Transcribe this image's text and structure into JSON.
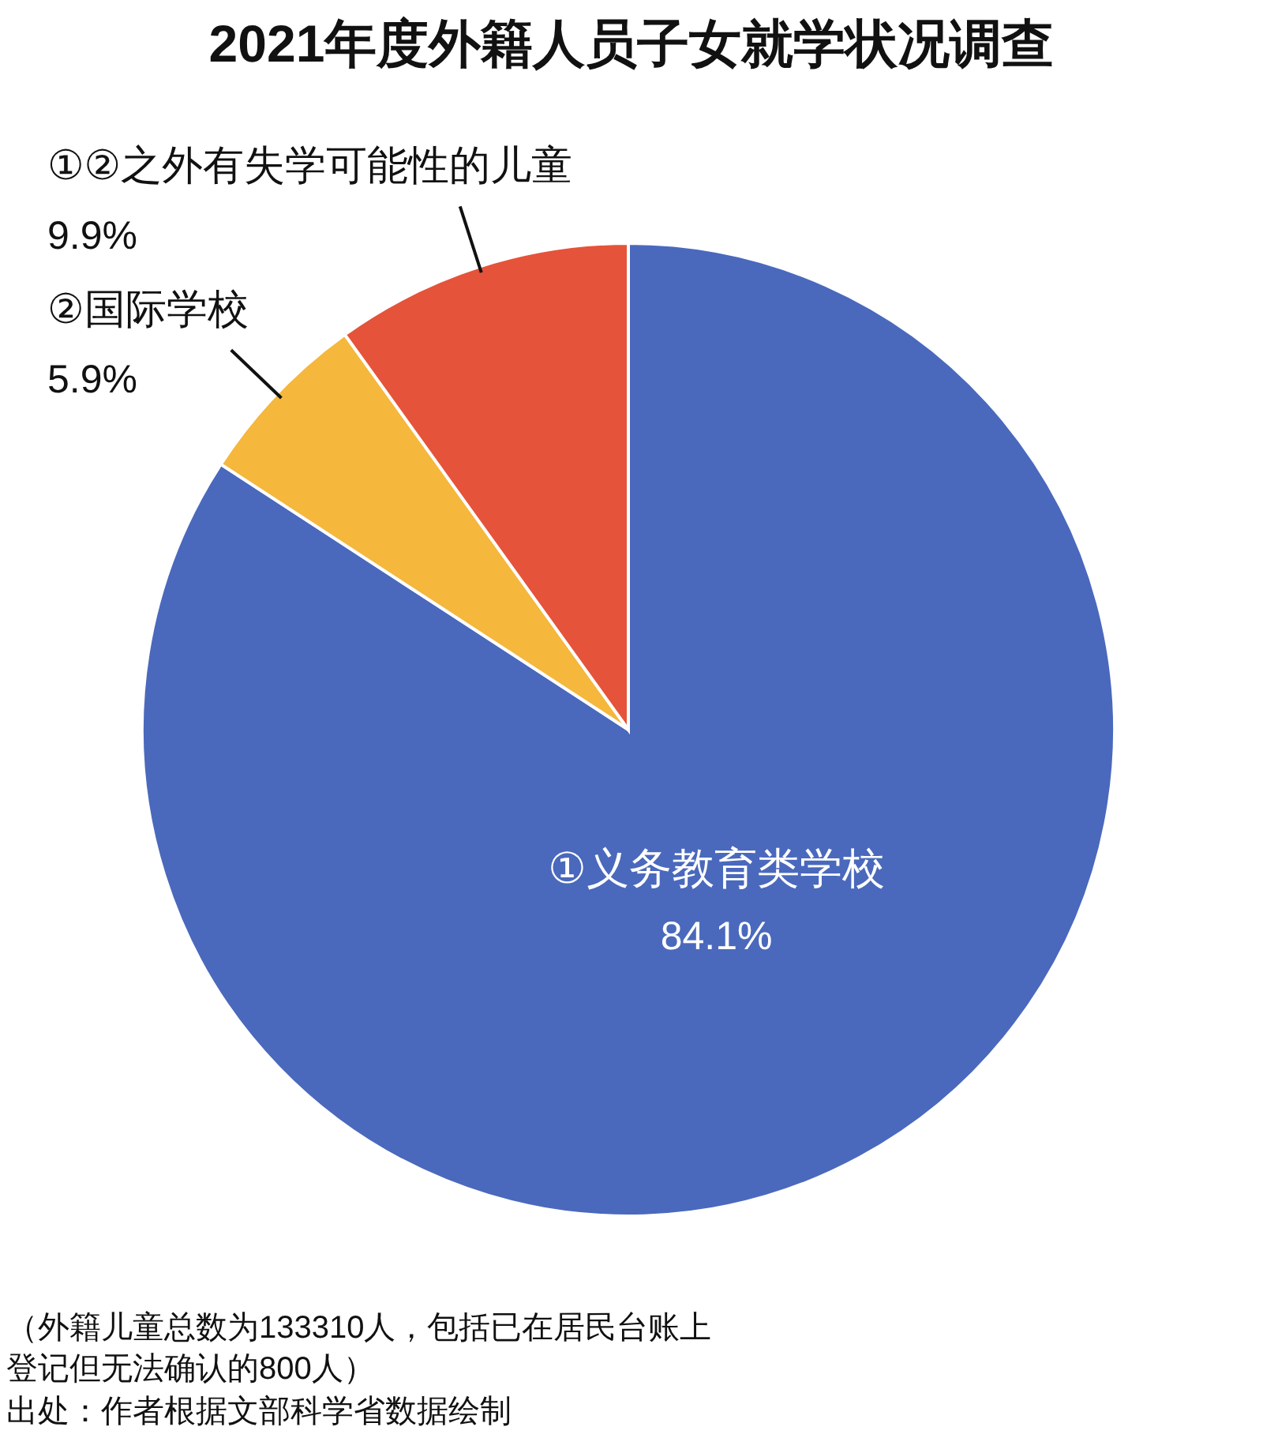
{
  "chart_data": {
    "type": "pie",
    "title": "2021年度外籍人员子女就学状况调查",
    "categories": [
      "①义务教育类学校",
      "②国际学校",
      "①②之外有失学可能性的儿童"
    ],
    "values": [
      84.1,
      5.9,
      9.9
    ],
    "value_labels": [
      "84.1%",
      "5.9%",
      "9.9%"
    ],
    "colors": [
      "#4a69bd",
      "#f5b73c",
      "#e5533a"
    ],
    "legend": false,
    "annotations": [
      "（外籍儿童总数为133310人，包括已在居民台账上登记但无法确认的800人）",
      "出处：作者根据文部科学省数据绘制"
    ]
  }
}
